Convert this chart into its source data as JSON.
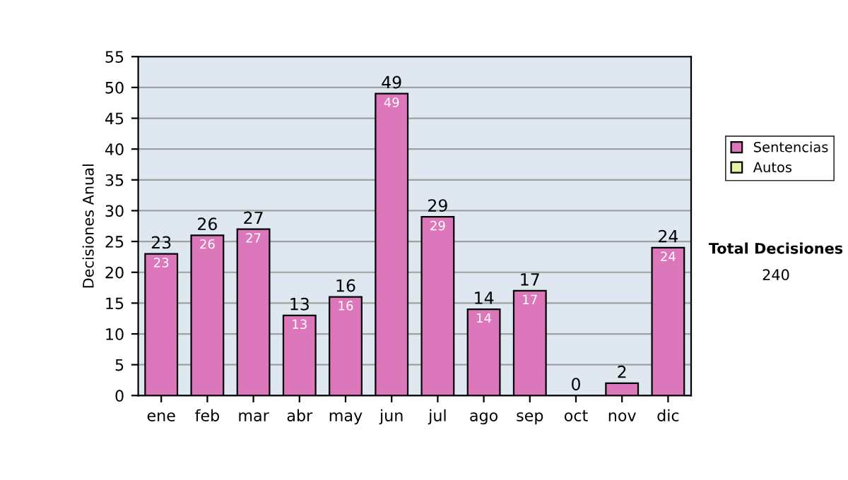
{
  "chart_data": {
    "type": "bar",
    "stacked": true,
    "ylabel": "Decisiones Anual",
    "categories": [
      "ene",
      "feb",
      "mar",
      "abr",
      "may",
      "jun",
      "jul",
      "ago",
      "sep",
      "oct",
      "nov",
      "dic"
    ],
    "series": [
      {
        "name": "Sentencias",
        "color": "#dd77bb",
        "values": [
          23,
          26,
          27,
          13,
          16,
          49,
          29,
          14,
          17,
          0,
          2,
          24
        ],
        "value_labels": [
          "23",
          "26",
          "27",
          "13",
          "16",
          "49",
          "29",
          "14",
          "17",
          null,
          null,
          "24"
        ]
      },
      {
        "name": "Autos",
        "color": "#e6f0a8",
        "values": [
          0,
          0,
          0,
          0,
          0,
          0,
          0,
          0,
          0,
          0,
          0,
          0
        ]
      }
    ],
    "totals": [
      "23",
      "26",
      "27",
      "13",
      "16",
      "49",
      "29",
      "14",
      "17",
      "0",
      "2",
      "24"
    ],
    "ylim": [
      0,
      55
    ],
    "yticks": [
      0,
      5,
      10,
      15,
      20,
      25,
      30,
      35,
      40,
      45,
      50,
      55
    ],
    "grid": "y",
    "legend": "right",
    "annotations": [
      "Total Decisiones",
      "240"
    ]
  }
}
